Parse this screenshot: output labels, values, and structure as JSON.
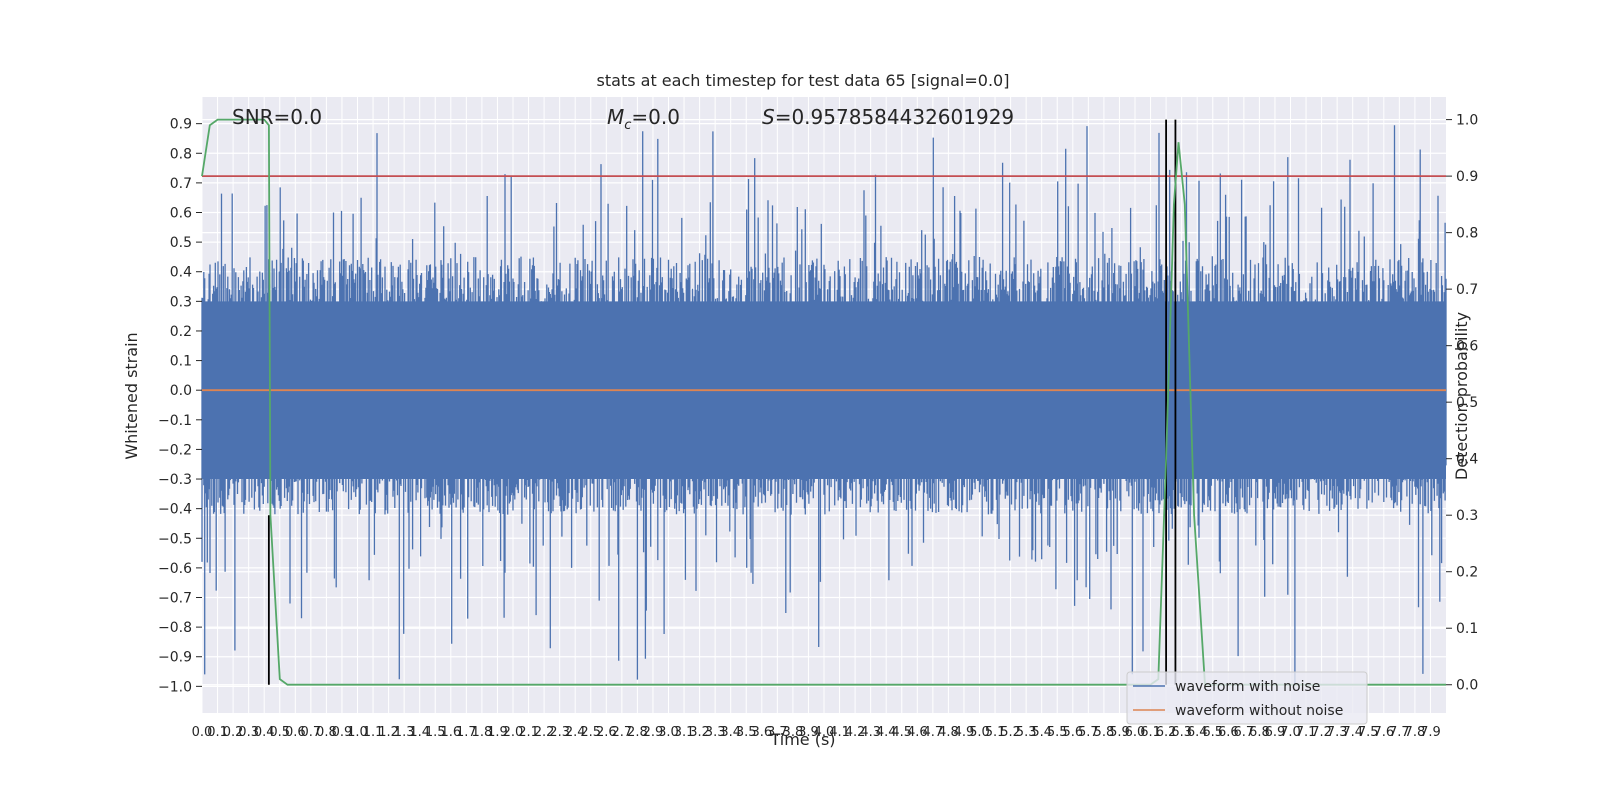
{
  "chart_data": {
    "type": "line",
    "title": "stats at each timestep for test data 65 [signal=0.0]",
    "xlabel": "Time (s)",
    "ylabel": "Whitened strain",
    "y2label": "Detection probability",
    "xlim": [
      0.0,
      8.0
    ],
    "ylim": [
      -1.09,
      0.99
    ],
    "y2lim": [
      -0.05,
      1.04
    ],
    "grid": true,
    "legend_position": "lower-right",
    "annotations": [
      {
        "text": "SNR=0.0",
        "x": 0.2,
        "y": 0.92
      },
      {
        "text": "M_c=0.0",
        "x": 2.6,
        "y": 0.92
      },
      {
        "text": "S=0.9578584432601929",
        "x": 3.6,
        "y": 0.92
      }
    ],
    "yticks": [
      "−1.0",
      "−0.9",
      "−0.8",
      "−0.7",
      "−0.6",
      "−0.5",
      "−0.4",
      "−0.3",
      "−0.2",
      "−0.1",
      "0.0",
      "0.1",
      "0.2",
      "0.3",
      "0.4",
      "0.5",
      "0.6",
      "0.7",
      "0.8",
      "0.9"
    ],
    "y2ticks": [
      "0.0",
      "0.1",
      "0.2",
      "0.3",
      "0.4",
      "0.5",
      "0.6",
      "0.7",
      "0.8",
      "0.9",
      "1.0"
    ],
    "xticks": [
      "0.0",
      "0.1",
      "0.2",
      "0.3",
      "0.4",
      "0.5",
      "0.6",
      "0.7",
      "0.8",
      "0.9",
      "1.0",
      "1.1",
      "1.2",
      "1.3",
      "1.4",
      "1.5",
      "1.6",
      "1.7",
      "1.8",
      "1.9",
      "2.0",
      "2.1",
      "2.2",
      "2.3",
      "2.4",
      "2.5",
      "2.6",
      "2.7",
      "2.8",
      "2.9",
      "3.0",
      "3.1",
      "3.2",
      "3.3",
      "3.4",
      "3.5",
      "3.6",
      "3.7",
      "3.8",
      "3.9",
      "4.0",
      "4.1",
      "4.2",
      "4.3",
      "4.4",
      "4.5",
      "4.6",
      "4.7",
      "4.8",
      "4.9",
      "5.0",
      "5.1",
      "5.2",
      "5.3",
      "5.4",
      "5.5",
      "5.6",
      "5.7",
      "5.8",
      "5.9",
      "6.0",
      "6.1",
      "6.2",
      "6.3",
      "6.4",
      "6.5",
      "6.6",
      "6.7",
      "6.8",
      "6.9",
      "7.0",
      "7.1",
      "7.2",
      "7.3",
      "7.4",
      "7.5",
      "7.6",
      "7.7",
      "7.8",
      "7.9"
    ],
    "series": [
      {
        "name": "waveform with noise",
        "color": "#4c72b0",
        "axis": "left",
        "kind": "noise",
        "typical_envelope": [
          -0.42,
          0.45
        ],
        "extremes": [
          -1.0,
          0.9
        ]
      },
      {
        "name": "waveform without noise",
        "color": "#dd8452",
        "axis": "left",
        "x": [
          0.0,
          8.0
        ],
        "y": [
          0.0,
          0.0
        ]
      },
      {
        "name": "",
        "color": "#55a868",
        "axis": "right",
        "x": [
          0.0,
          0.05,
          0.1,
          0.2,
          0.3,
          0.4,
          0.43,
          0.44,
          0.5,
          0.55,
          0.6,
          6.1,
          6.15,
          6.2,
          6.25,
          6.28,
          6.32,
          6.38,
          6.45,
          7.85,
          7.95,
          8.0
        ],
        "y": [
          0.9,
          0.99,
          1.0,
          1.0,
          1.0,
          1.0,
          0.99,
          0.3,
          0.01,
          0.0,
          0.0,
          0.0,
          0.01,
          0.4,
          0.85,
          0.96,
          0.85,
          0.3,
          0.0,
          0.0,
          0.0,
          0.0
        ]
      },
      {
        "name": "",
        "color": "#c44e52",
        "axis": "right",
        "x": [
          0.0,
          8.0
        ],
        "y": [
          0.9,
          0.9
        ]
      }
    ],
    "vertical_lines": [
      {
        "x": 0.43,
        "ymin": 0.0,
        "ymax": 0.3,
        "color": "#000000"
      },
      {
        "x": 6.2,
        "ymin": 0.0,
        "ymax": 1.0,
        "color": "#000000"
      },
      {
        "x": 6.26,
        "ymin": 0.0,
        "ymax": 1.0,
        "color": "#000000"
      }
    ]
  }
}
